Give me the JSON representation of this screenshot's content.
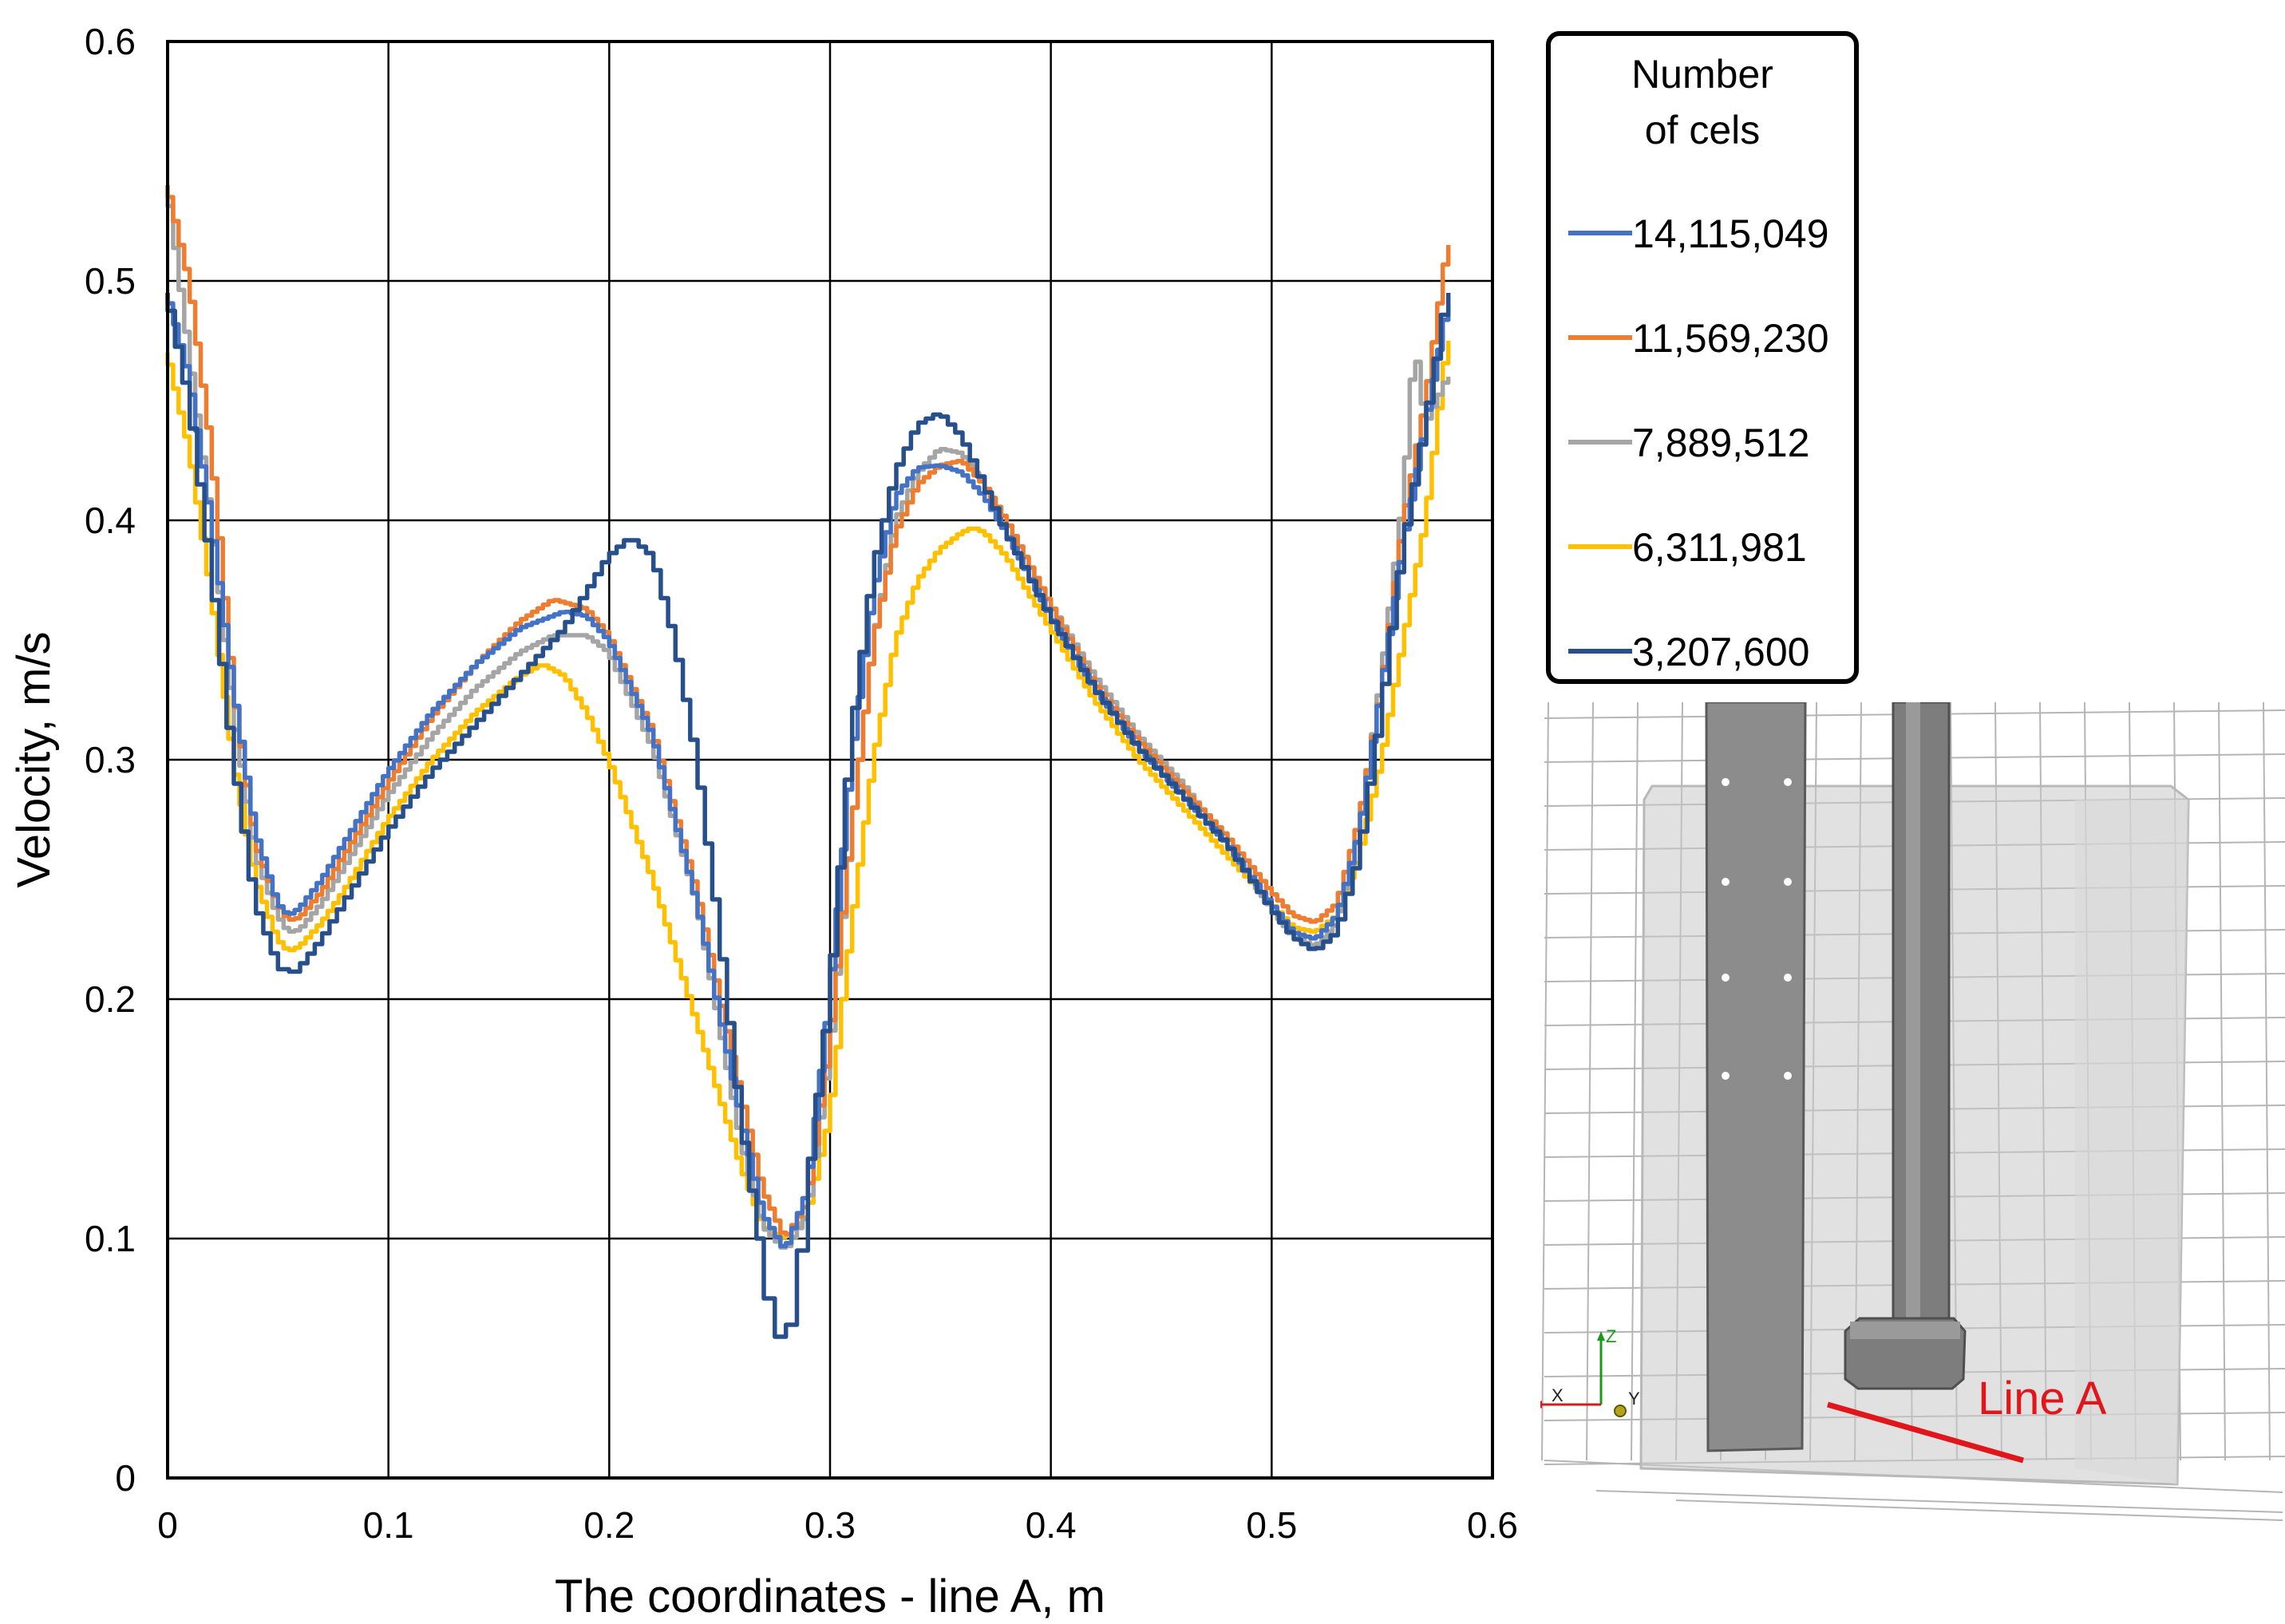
{
  "chart_data": {
    "type": "line",
    "xlabel": "The coordinates - line A, m",
    "ylabel": "Velocity, m/s",
    "xlim": [
      0,
      0.6
    ],
    "ylim": [
      0,
      0.6
    ],
    "xticks": [
      "0",
      "0.1",
      "0.2",
      "0.3",
      "0.4",
      "0.5",
      "0.6"
    ],
    "yticks": [
      "0",
      "0.1",
      "0.2",
      "0.3",
      "0.4",
      "0.5",
      "0.6"
    ],
    "grid": true,
    "legend": {
      "title_line1": "Number",
      "title_line2": "of cels",
      "position": "right"
    },
    "series": [
      {
        "name": "14,115,049",
        "color": "#4472c4",
        "x": [
          0,
          0.01,
          0.02,
          0.03,
          0.04,
          0.05,
          0.055,
          0.06,
          0.07,
          0.08,
          0.1,
          0.12,
          0.14,
          0.16,
          0.18,
          0.19,
          0.2,
          0.22,
          0.24,
          0.26,
          0.27,
          0.28,
          0.29,
          0.3,
          0.31,
          0.32,
          0.33,
          0.34,
          0.35,
          0.36,
          0.37,
          0.38,
          0.4,
          0.42,
          0.44,
          0.46,
          0.48,
          0.5,
          0.51,
          0.52,
          0.53,
          0.54,
          0.55,
          0.56,
          0.57,
          0.58
        ],
        "y": [
          0.495,
          0.46,
          0.4,
          0.33,
          0.27,
          0.24,
          0.235,
          0.238,
          0.25,
          0.265,
          0.295,
          0.32,
          0.34,
          0.355,
          0.362,
          0.36,
          0.35,
          0.31,
          0.24,
          0.15,
          0.11,
          0.095,
          0.12,
          0.2,
          0.3,
          0.37,
          0.41,
          0.422,
          0.423,
          0.42,
          0.41,
          0.395,
          0.36,
          0.33,
          0.305,
          0.285,
          0.265,
          0.24,
          0.228,
          0.225,
          0.235,
          0.27,
          0.33,
          0.39,
          0.44,
          0.49
        ]
      },
      {
        "name": "11,569,230",
        "color": "#ed7d31",
        "x": [
          0,
          0.01,
          0.02,
          0.03,
          0.04,
          0.05,
          0.055,
          0.06,
          0.07,
          0.08,
          0.1,
          0.12,
          0.14,
          0.16,
          0.175,
          0.19,
          0.2,
          0.22,
          0.24,
          0.26,
          0.27,
          0.28,
          0.29,
          0.3,
          0.31,
          0.32,
          0.33,
          0.34,
          0.35,
          0.36,
          0.37,
          0.38,
          0.4,
          0.42,
          0.44,
          0.46,
          0.48,
          0.5,
          0.51,
          0.52,
          0.53,
          0.54,
          0.55,
          0.56,
          0.57,
          0.58
        ],
        "y": [
          0.54,
          0.5,
          0.43,
          0.33,
          0.265,
          0.24,
          0.233,
          0.234,
          0.245,
          0.26,
          0.29,
          0.318,
          0.34,
          0.358,
          0.367,
          0.363,
          0.352,
          0.312,
          0.245,
          0.16,
          0.12,
          0.1,
          0.115,
          0.18,
          0.27,
          0.35,
          0.395,
          0.415,
          0.423,
          0.425,
          0.415,
          0.4,
          0.365,
          0.332,
          0.308,
          0.288,
          0.268,
          0.245,
          0.235,
          0.232,
          0.24,
          0.275,
          0.33,
          0.4,
          0.45,
          0.515
        ]
      },
      {
        "name": "7,889,512",
        "color": "#a5a5a5",
        "x": [
          0,
          0.01,
          0.02,
          0.03,
          0.04,
          0.05,
          0.055,
          0.06,
          0.07,
          0.08,
          0.1,
          0.12,
          0.14,
          0.16,
          0.175,
          0.19,
          0.2,
          0.22,
          0.24,
          0.26,
          0.27,
          0.28,
          0.29,
          0.3,
          0.31,
          0.32,
          0.33,
          0.34,
          0.35,
          0.36,
          0.37,
          0.38,
          0.4,
          0.42,
          0.44,
          0.46,
          0.48,
          0.5,
          0.51,
          0.52,
          0.53,
          0.54,
          0.55,
          0.56,
          0.565,
          0.57,
          0.58
        ],
        "y": [
          0.54,
          0.47,
          0.4,
          0.32,
          0.26,
          0.235,
          0.228,
          0.229,
          0.24,
          0.255,
          0.285,
          0.31,
          0.33,
          0.345,
          0.352,
          0.352,
          0.345,
          0.305,
          0.24,
          0.14,
          0.105,
          0.095,
          0.11,
          0.175,
          0.27,
          0.35,
          0.4,
          0.42,
          0.43,
          0.428,
          0.415,
          0.4,
          0.365,
          0.335,
          0.31,
          0.29,
          0.265,
          0.238,
          0.226,
          0.222,
          0.232,
          0.27,
          0.335,
          0.41,
          0.475,
          0.44,
          0.46
        ]
      },
      {
        "name": "6,311,981",
        "color": "#ffc000",
        "x": [
          0,
          0.01,
          0.02,
          0.03,
          0.04,
          0.05,
          0.055,
          0.06,
          0.07,
          0.08,
          0.1,
          0.12,
          0.14,
          0.16,
          0.17,
          0.18,
          0.19,
          0.2,
          0.22,
          0.24,
          0.26,
          0.27,
          0.28,
          0.29,
          0.3,
          0.31,
          0.32,
          0.33,
          0.34,
          0.35,
          0.36,
          0.365,
          0.37,
          0.38,
          0.4,
          0.42,
          0.44,
          0.46,
          0.48,
          0.5,
          0.51,
          0.52,
          0.53,
          0.54,
          0.55,
          0.56,
          0.57,
          0.58
        ],
        "y": [
          0.47,
          0.43,
          0.37,
          0.3,
          0.25,
          0.225,
          0.22,
          0.222,
          0.232,
          0.245,
          0.275,
          0.3,
          0.32,
          0.335,
          0.34,
          0.335,
          0.32,
          0.3,
          0.25,
          0.19,
          0.13,
          0.105,
          0.1,
          0.11,
          0.15,
          0.23,
          0.3,
          0.35,
          0.375,
          0.388,
          0.395,
          0.397,
          0.395,
          0.385,
          0.355,
          0.325,
          0.3,
          0.28,
          0.26,
          0.24,
          0.23,
          0.228,
          0.235,
          0.26,
          0.3,
          0.35,
          0.4,
          0.475
        ]
      },
      {
        "name": "3,207,600",
        "color": "#264f8c",
        "x": [
          0,
          0.01,
          0.02,
          0.03,
          0.04,
          0.05,
          0.055,
          0.06,
          0.07,
          0.08,
          0.1,
          0.12,
          0.14,
          0.16,
          0.18,
          0.19,
          0.2,
          0.21,
          0.22,
          0.23,
          0.24,
          0.25,
          0.26,
          0.27,
          0.275,
          0.28,
          0.285,
          0.29,
          0.3,
          0.31,
          0.32,
          0.33,
          0.34,
          0.35,
          0.36,
          0.37,
          0.38,
          0.4,
          0.42,
          0.44,
          0.46,
          0.48,
          0.5,
          0.51,
          0.52,
          0.53,
          0.54,
          0.55,
          0.56,
          0.57,
          0.58
        ],
        "y": [
          0.495,
          0.45,
          0.38,
          0.3,
          0.24,
          0.215,
          0.21,
          0.213,
          0.225,
          0.24,
          0.27,
          0.295,
          0.315,
          0.335,
          0.355,
          0.37,
          0.385,
          0.393,
          0.385,
          0.35,
          0.3,
          0.23,
          0.15,
          0.09,
          0.06,
          0.058,
          0.07,
          0.12,
          0.2,
          0.31,
          0.38,
          0.42,
          0.44,
          0.445,
          0.435,
          0.415,
          0.395,
          0.36,
          0.33,
          0.305,
          0.285,
          0.265,
          0.238,
          0.226,
          0.22,
          0.228,
          0.26,
          0.32,
          0.39,
          0.44,
          0.495
        ]
      }
    ]
  },
  "inset": {
    "annotation": "Line A",
    "axis_z": "Z",
    "axis_x": "X",
    "axis_y": "Y"
  }
}
